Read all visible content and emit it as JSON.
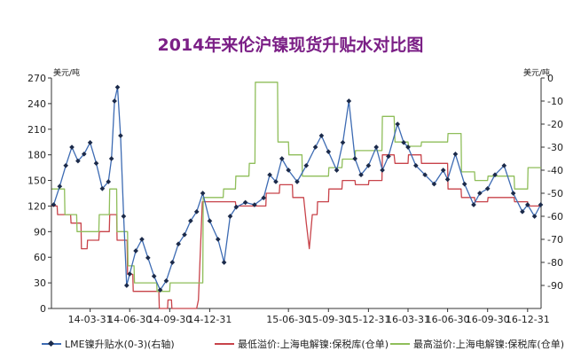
{
  "chart_data": {
    "type": "line",
    "title": "2014年来伦沪镍现货升贴水对比图",
    "left_axis": {
      "unit": "美元/吨",
      "ticks": [
        0,
        30,
        60,
        90,
        120,
        150,
        180,
        210,
        240,
        270
      ],
      "range": [
        0,
        270
      ]
    },
    "right_axis": {
      "unit": "美元/吨",
      "ticks": [
        0,
        -10,
        -20,
        -30,
        -40,
        -50,
        -60,
        -70,
        -80,
        -90
      ],
      "range": [
        -100,
        0
      ]
    },
    "x_ticks": [
      "14-03-31",
      "14-06-30",
      "14-09-30",
      "14-12-31",
      "15-06-30",
      "15-09-30",
      "15-12-31",
      "16-03-31",
      "16-06-30",
      "16-09-30",
      "16-12-31"
    ],
    "x_range": [
      "2014-01-01",
      "2017-01-31"
    ],
    "series": [
      {
        "name": "LME镍升贴水(0-3)(右轴)",
        "axis": "right",
        "color": "#3d6bb3",
        "marker": "diamond",
        "points": [
          [
            "2014-01-06",
            -55
          ],
          [
            "2014-01-20",
            -47
          ],
          [
            "2014-02-03",
            -38
          ],
          [
            "2014-02-17",
            -30
          ],
          [
            "2014-03-03",
            -36
          ],
          [
            "2014-03-17",
            -33
          ],
          [
            "2014-03-31",
            -28
          ],
          [
            "2014-04-14",
            -37
          ],
          [
            "2014-04-28",
            -48
          ],
          [
            "2014-05-12",
            -45
          ],
          [
            "2014-05-19",
            -35
          ],
          [
            "2014-05-26",
            -10
          ],
          [
            "2014-06-02",
            -4
          ],
          [
            "2014-06-09",
            -25
          ],
          [
            "2014-06-16",
            -60
          ],
          [
            "2014-06-23",
            -90
          ],
          [
            "2014-06-30",
            -85
          ],
          [
            "2014-07-14",
            -75
          ],
          [
            "2014-07-28",
            -70
          ],
          [
            "2014-08-11",
            -78
          ],
          [
            "2014-08-25",
            -86
          ],
          [
            "2014-09-08",
            -92
          ],
          [
            "2014-09-22",
            -88
          ],
          [
            "2014-10-06",
            -80
          ],
          [
            "2014-10-20",
            -72
          ],
          [
            "2014-11-03",
            -68
          ],
          [
            "2014-11-17",
            -62
          ],
          [
            "2014-12-01",
            -58
          ],
          [
            "2014-12-15",
            -50
          ],
          [
            "2014-12-31",
            -62
          ],
          [
            "2015-01-19",
            -70
          ],
          [
            "2015-02-02",
            -80
          ],
          [
            "2015-02-16",
            -60
          ],
          [
            "2015-03-02",
            -56
          ],
          [
            "2015-03-23",
            -54
          ],
          [
            "2015-04-13",
            -55
          ],
          [
            "2015-05-04",
            -52
          ],
          [
            "2015-05-18",
            -42
          ],
          [
            "2015-06-01",
            -45
          ],
          [
            "2015-06-15",
            -35
          ],
          [
            "2015-06-30",
            -40
          ],
          [
            "2015-07-20",
            -45
          ],
          [
            "2015-08-10",
            -38
          ],
          [
            "2015-08-31",
            -30
          ],
          [
            "2015-09-14",
            -25
          ],
          [
            "2015-09-30",
            -32
          ],
          [
            "2015-10-19",
            -40
          ],
          [
            "2015-11-02",
            -28
          ],
          [
            "2015-11-16",
            -10
          ],
          [
            "2015-11-30",
            -35
          ],
          [
            "2015-12-14",
            -42
          ],
          [
            "2015-12-31",
            -38
          ],
          [
            "2016-01-18",
            -30
          ],
          [
            "2016-02-01",
            -40
          ],
          [
            "2016-02-15",
            -34
          ],
          [
            "2016-03-07",
            -20
          ],
          [
            "2016-03-21",
            -28
          ],
          [
            "2016-03-31",
            -30
          ],
          [
            "2016-04-18",
            -38
          ],
          [
            "2016-05-09",
            -42
          ],
          [
            "2016-05-30",
            -46
          ],
          [
            "2016-06-20",
            -40
          ],
          [
            "2016-06-30",
            -44
          ],
          [
            "2016-07-18",
            -33
          ],
          [
            "2016-08-08",
            -46
          ],
          [
            "2016-08-29",
            -55
          ],
          [
            "2016-09-12",
            -50
          ],
          [
            "2016-09-30",
            -48
          ],
          [
            "2016-10-17",
            -42
          ],
          [
            "2016-11-07",
            -38
          ],
          [
            "2016-11-28",
            -50
          ],
          [
            "2016-12-19",
            -58
          ],
          [
            "2016-12-31",
            -55
          ],
          [
            "2017-01-16",
            -60
          ],
          [
            "2017-01-30",
            -55
          ]
        ]
      },
      {
        "name": "最低溢价:上海电解镍:保税库(仓单)",
        "axis": "left",
        "color": "#c8434a",
        "points": [
          [
            "2014-01-02",
            120
          ],
          [
            "2014-01-14",
            120
          ],
          [
            "2014-01-15",
            110
          ],
          [
            "2014-02-14",
            110
          ],
          [
            "2014-02-15",
            100
          ],
          [
            "2014-03-10",
            100
          ],
          [
            "2014-03-11",
            70
          ],
          [
            "2014-03-24",
            70
          ],
          [
            "2014-03-25",
            80
          ],
          [
            "2014-04-20",
            80
          ],
          [
            "2014-04-21",
            90
          ],
          [
            "2014-05-14",
            90
          ],
          [
            "2014-05-15",
            110
          ],
          [
            "2014-05-31",
            110
          ],
          [
            "2014-06-01",
            80
          ],
          [
            "2014-06-24",
            80
          ],
          [
            "2014-06-25",
            40
          ],
          [
            "2014-07-07",
            40
          ],
          [
            "2014-07-08",
            20
          ],
          [
            "2014-09-05",
            20
          ],
          [
            "2014-09-06",
            0
          ],
          [
            "2014-09-25",
            0
          ],
          [
            "2014-09-26",
            10
          ],
          [
            "2014-10-04",
            10
          ],
          [
            "2014-10-05",
            0
          ],
          [
            "2014-12-01",
            0
          ],
          [
            "2014-12-05",
            10
          ],
          [
            "2014-12-14",
            125
          ],
          [
            "2015-02-28",
            125
          ],
          [
            "2015-03-01",
            120
          ],
          [
            "2015-05-09",
            120
          ],
          [
            "2015-05-10",
            135
          ],
          [
            "2015-06-09",
            135
          ],
          [
            "2015-06-10",
            145
          ],
          [
            "2015-07-09",
            145
          ],
          [
            "2015-07-10",
            130
          ],
          [
            "2015-08-04",
            130
          ],
          [
            "2015-08-10",
            100
          ],
          [
            "2015-08-17",
            70
          ],
          [
            "2015-08-24",
            110
          ],
          [
            "2015-09-04",
            110
          ],
          [
            "2015-09-05",
            125
          ],
          [
            "2015-09-30",
            125
          ],
          [
            "2015-10-01",
            140
          ],
          [
            "2015-10-31",
            140
          ],
          [
            "2015-11-01",
            150
          ],
          [
            "2015-11-30",
            150
          ],
          [
            "2015-12-01",
            145
          ],
          [
            "2015-12-31",
            145
          ],
          [
            "2016-01-01",
            150
          ],
          [
            "2016-01-31",
            150
          ],
          [
            "2016-02-01",
            180
          ],
          [
            "2016-02-28",
            180
          ],
          [
            "2016-03-01",
            170
          ],
          [
            "2016-03-31",
            170
          ],
          [
            "2016-04-01",
            180
          ],
          [
            "2016-04-30",
            180
          ],
          [
            "2016-05-01",
            170
          ],
          [
            "2016-06-30",
            170
          ],
          [
            "2016-07-01",
            140
          ],
          [
            "2016-07-31",
            140
          ],
          [
            "2016-08-01",
            130
          ],
          [
            "2016-08-31",
            130
          ],
          [
            "2016-09-01",
            125
          ],
          [
            "2016-09-30",
            125
          ],
          [
            "2016-10-01",
            130
          ],
          [
            "2016-11-30",
            130
          ],
          [
            "2016-12-01",
            125
          ],
          [
            "2016-12-31",
            125
          ],
          [
            "2017-01-01",
            120
          ],
          [
            "2017-01-31",
            120
          ]
        ]
      },
      {
        "name": "最高溢价:上海电解镍:保税库(仓单)",
        "axis": "left",
        "color": "#8fbe5a",
        "points": [
          [
            "2014-01-02",
            140
          ],
          [
            "2014-01-31",
            140
          ],
          [
            "2014-02-01",
            110
          ],
          [
            "2014-02-28",
            110
          ],
          [
            "2014-03-01",
            90
          ],
          [
            "2014-04-20",
            90
          ],
          [
            "2014-04-21",
            110
          ],
          [
            "2014-05-14",
            110
          ],
          [
            "2014-05-15",
            140
          ],
          [
            "2014-05-31",
            140
          ],
          [
            "2014-06-01",
            90
          ],
          [
            "2014-06-25",
            90
          ],
          [
            "2014-06-26",
            50
          ],
          [
            "2014-07-10",
            50
          ],
          [
            "2014-07-11",
            30
          ],
          [
            "2014-08-31",
            30
          ],
          [
            "2014-09-01",
            20
          ],
          [
            "2014-09-30",
            20
          ],
          [
            "2014-10-01",
            30
          ],
          [
            "2014-12-15",
            30
          ],
          [
            "2014-12-16",
            130
          ],
          [
            "2015-01-31",
            130
          ],
          [
            "2015-02-01",
            140
          ],
          [
            "2015-02-28",
            140
          ],
          [
            "2015-03-01",
            155
          ],
          [
            "2015-03-31",
            155
          ],
          [
            "2015-04-01",
            170
          ],
          [
            "2015-04-14",
            170
          ],
          [
            "2015-04-15",
            265
          ],
          [
            "2015-06-05",
            265
          ],
          [
            "2015-06-06",
            195
          ],
          [
            "2015-06-30",
            195
          ],
          [
            "2015-07-01",
            180
          ],
          [
            "2015-07-31",
            180
          ],
          [
            "2015-08-01",
            155
          ],
          [
            "2015-09-30",
            155
          ],
          [
            "2015-10-01",
            165
          ],
          [
            "2015-10-31",
            165
          ],
          [
            "2015-11-01",
            175
          ],
          [
            "2015-11-30",
            175
          ],
          [
            "2015-12-01",
            185
          ],
          [
            "2016-01-31",
            185
          ],
          [
            "2016-02-01",
            225
          ],
          [
            "2016-02-28",
            225
          ],
          [
            "2016-03-01",
            195
          ],
          [
            "2016-03-31",
            195
          ],
          [
            "2016-04-01",
            190
          ],
          [
            "2016-04-30",
            190
          ],
          [
            "2016-05-01",
            195
          ],
          [
            "2016-06-30",
            195
          ],
          [
            "2016-07-01",
            205
          ],
          [
            "2016-07-31",
            205
          ],
          [
            "2016-08-01",
            160
          ],
          [
            "2016-08-31",
            160
          ],
          [
            "2016-09-01",
            150
          ],
          [
            "2016-09-30",
            150
          ],
          [
            "2016-10-01",
            155
          ],
          [
            "2016-11-30",
            155
          ],
          [
            "2016-12-01",
            140
          ],
          [
            "2016-12-31",
            140
          ],
          [
            "2017-01-01",
            165
          ],
          [
            "2017-01-31",
            165
          ]
        ]
      }
    ],
    "legend_position": "bottom",
    "grid": false
  }
}
